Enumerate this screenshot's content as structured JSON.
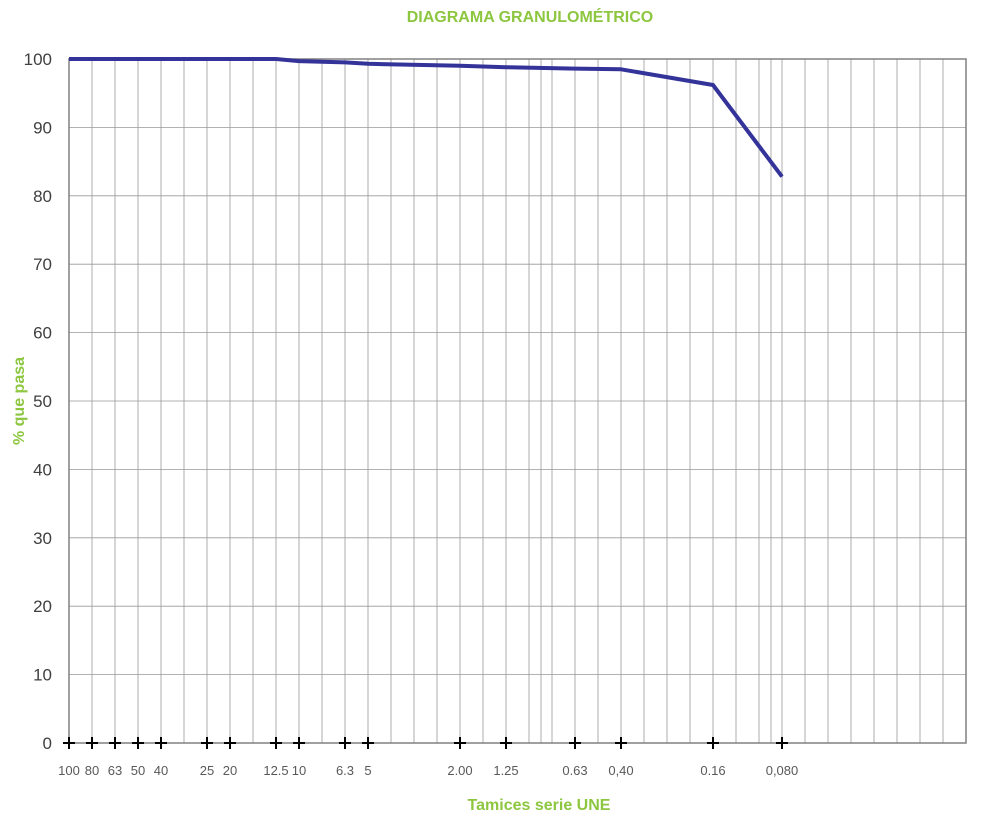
{
  "colors": {
    "accent_green": "#8dc63f",
    "series_line": "#333399",
    "grid": "#999999",
    "frame": "#808080",
    "marker": "#000000"
  },
  "chart_data": {
    "type": "line",
    "title": "DIAGRAMA GRANULOMÉTRICO",
    "xlabel": "Tamices serie UNE",
    "ylabel": "% que pasa",
    "x_scale": "log",
    "x_reversed": true,
    "x": [
      "100",
      "80",
      "63",
      "50",
      "40",
      "25",
      "20",
      "12.5",
      "10",
      "6.3",
      "5",
      "2.00",
      "1.25",
      "0.63",
      "0,40",
      "0.16",
      "0,080"
    ],
    "ylim": [
      0,
      100
    ],
    "yticks": [
      0,
      10,
      20,
      30,
      40,
      50,
      60,
      70,
      80,
      90,
      100
    ],
    "grid": true,
    "series": [
      {
        "values": [
          100,
          100,
          100,
          100,
          100,
          100,
          100,
          100,
          99.7,
          99.5,
          99.3,
          99.0,
          98.8,
          98.6,
          98.5,
          96.2,
          82.8
        ]
      }
    ]
  }
}
